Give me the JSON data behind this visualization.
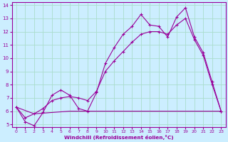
{
  "xlabel": "Windchill (Refroidissement éolien,°C)",
  "bg_color": "#cceeff",
  "line_color": "#990099",
  "grid_color": "#aaddcc",
  "xlim": [
    -0.5,
    23.5
  ],
  "ylim": [
    4.8,
    14.2
  ],
  "yticks": [
    5,
    6,
    7,
    8,
    9,
    10,
    11,
    12,
    13,
    14
  ],
  "xticks": [
    0,
    1,
    2,
    3,
    4,
    5,
    6,
    7,
    8,
    9,
    10,
    11,
    12,
    13,
    14,
    15,
    16,
    17,
    18,
    19,
    20,
    21,
    22,
    23
  ],
  "series1_x": [
    0,
    1,
    2,
    3,
    4,
    5,
    6,
    7,
    8,
    9,
    10,
    11,
    12,
    13,
    14,
    15,
    16,
    17,
    18,
    19,
    20,
    21,
    22,
    23
  ],
  "series1_y": [
    6.3,
    5.2,
    4.9,
    5.9,
    7.2,
    7.6,
    7.2,
    6.2,
    6.0,
    7.4,
    9.6,
    10.8,
    11.8,
    12.4,
    13.3,
    12.5,
    12.4,
    11.6,
    13.1,
    13.8,
    11.6,
    10.4,
    8.2,
    6.0
  ],
  "series2_x": [
    0,
    1,
    2,
    3,
    4,
    5,
    6,
    7,
    8,
    9,
    10,
    11,
    12,
    13,
    14,
    15,
    16,
    17,
    18,
    19,
    20,
    21,
    22,
    23
  ],
  "series2_y": [
    6.3,
    5.5,
    5.8,
    6.2,
    6.8,
    7.0,
    7.1,
    7.0,
    6.8,
    7.5,
    9.0,
    9.8,
    10.5,
    11.2,
    11.8,
    12.0,
    12.0,
    11.8,
    12.5,
    13.0,
    11.4,
    10.2,
    8.0,
    6.0
  ],
  "series3_x": [
    0,
    2,
    6,
    7,
    23
  ],
  "series3_y": [
    6.3,
    5.8,
    6.0,
    6.0,
    6.0
  ]
}
